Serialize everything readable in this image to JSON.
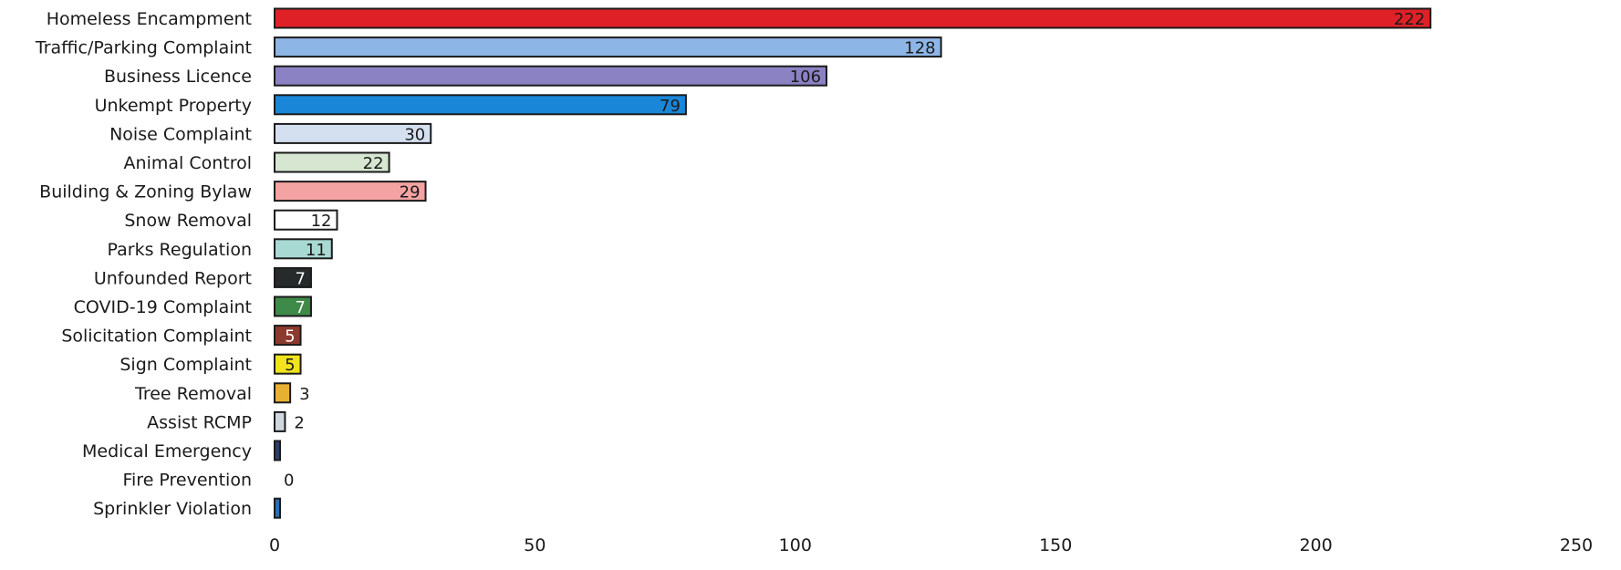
{
  "chart_data": {
    "type": "bar",
    "orientation": "horizontal",
    "title": "",
    "xlabel": "",
    "ylabel": "",
    "xlim": [
      0,
      250
    ],
    "xticks": [
      0,
      50,
      100,
      150,
      200,
      250
    ],
    "grid": false,
    "legend": "none",
    "categories": [
      "Homeless Encampment",
      "Traffic/Parking Complaint",
      "Business Licence",
      "Unkempt Property",
      "Noise Complaint",
      "Animal Control",
      "Building & Zoning Bylaw",
      "Snow Removal",
      "Parks Regulation",
      "Unfounded Report",
      "COVID-19 Complaint",
      "Solicitation Complaint",
      "Sign Complaint",
      "Tree Removal",
      "Assist RCMP",
      "Medical Emergency",
      "Fire Prevention",
      "Sprinkler Violation"
    ],
    "values": [
      222,
      128,
      106,
      79,
      30,
      22,
      29,
      12,
      11,
      7,
      7,
      5,
      5,
      3,
      2,
      1,
      0,
      1
    ],
    "data_labels": [
      "222",
      "128",
      "106",
      "79",
      "30",
      "22",
      "29",
      "12",
      "11",
      "7",
      "7",
      "5",
      "5",
      "3",
      "2",
      "",
      "0",
      ""
    ],
    "colors": [
      "#e02027",
      "#8db6e6",
      "#8b82c4",
      "#1a86d8",
      "#d4dff0",
      "#d6e6d0",
      "#f4a3a3",
      "#ffffff",
      "#a9d9d3",
      "#262a2b",
      "#3e8a49",
      "#8c3a2e",
      "#f1e41c",
      "#e8b033",
      "#cfd6de",
      "#2c3e66",
      "#ffffff",
      "#2d6db4"
    ],
    "label_colors": [
      "#1a1a1a",
      "#1a1a1a",
      "#1a1a1a",
      "#1a1a1a",
      "#1a1a1a",
      "#1a1a1a",
      "#1a1a1a",
      "#1a1a1a",
      "#1a1a1a",
      "#ffffff",
      "#ffffff",
      "#ffffff",
      "#1a1a1a",
      "#1a1a1a",
      "#1a1a1a",
      "#1a1a1a",
      "#1a1a1a",
      "#1a1a1a"
    ]
  }
}
